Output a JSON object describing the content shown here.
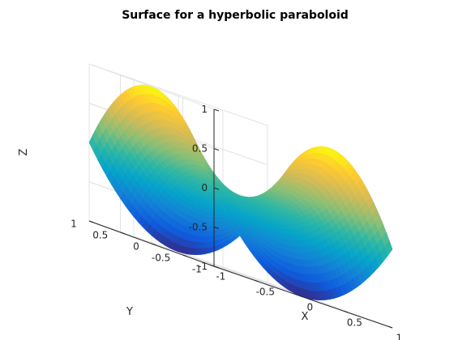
{
  "chart_data": {
    "type": "surface",
    "title": "Surface for a hyperbolic paraboloid",
    "function": "z = x^2 - y^2",
    "xlabel": "X",
    "ylabel": "Y",
    "zlabel": "Z",
    "xlim": [
      -1,
      1
    ],
    "ylim": [
      -1,
      1
    ],
    "zlim": [
      -1,
      1
    ],
    "xticks": [
      -1,
      -0.5,
      0,
      0.5,
      1
    ],
    "yticks": [
      -1,
      -0.5,
      0,
      0.5,
      1
    ],
    "zticks": [
      -1,
      -0.5,
      0,
      0.5,
      1
    ],
    "xtick_labels": [
      "-1",
      "-0.5",
      "0",
      "0.5",
      "1"
    ],
    "ytick_labels": [
      "-1",
      "-0.5",
      "0",
      "0.5",
      "1"
    ],
    "ztick_labels": [
      "-1",
      "-0.5",
      "0",
      "0.5",
      "1"
    ],
    "grid": true,
    "colormap": "parula",
    "colormap_stops": [
      "#352a87",
      "#0f5cdd",
      "#1481d6",
      "#06a4ca",
      "#2eb7a4",
      "#87bf77",
      "#d1bb59",
      "#fec832",
      "#f9fb0e"
    ],
    "grid_resolution": 41
  }
}
